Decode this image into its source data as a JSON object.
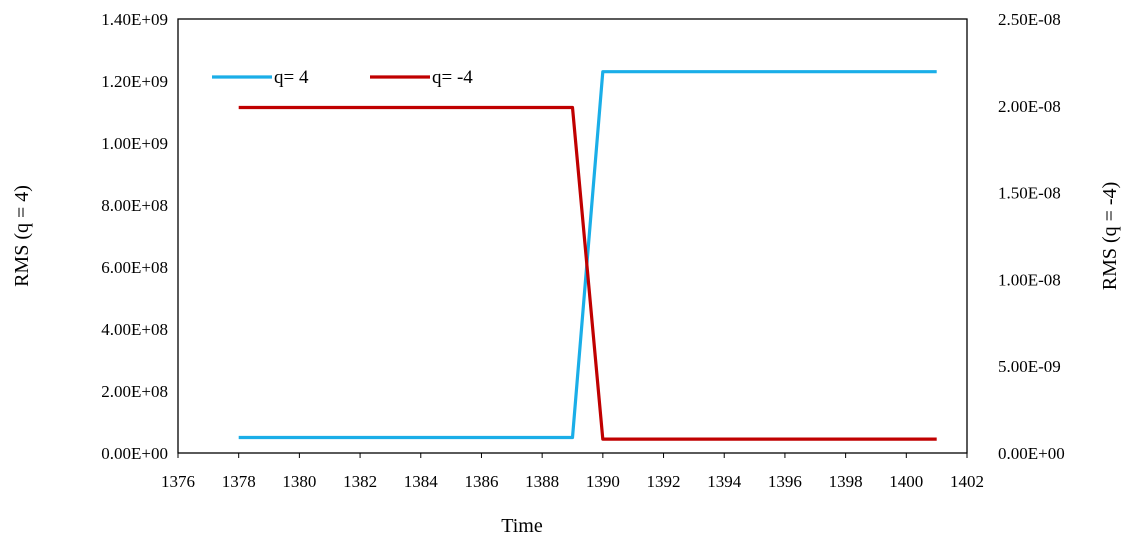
{
  "chart_data": {
    "type": "line",
    "title": "",
    "xlabel": "Time",
    "ylabel_left": "RMS (q = 4)",
    "ylabel_right": "RMS (q = -4)",
    "xlim": [
      1376,
      1402
    ],
    "x_ticks": [
      "1376",
      "1378",
      "1380",
      "1382",
      "1384",
      "1386",
      "1388",
      "1390",
      "1392",
      "1394",
      "1396",
      "1398",
      "1400",
      "1402"
    ],
    "ylim_left": [
      0,
      1400000000
    ],
    "y_left_ticks": [
      "0.00E+00",
      "2.00E+08",
      "4.00E+08",
      "6.00E+08",
      "8.00E+08",
      "1.00E+09",
      "1.20E+09",
      "1.40E+09"
    ],
    "ylim_right": [
      0,
      2.5e-08
    ],
    "y_right_ticks": [
      "0.00E+00",
      "5.00E-09",
      "1.00E-08",
      "1.50E-08",
      "2.00E-08",
      "2.50E-08"
    ],
    "grid": false,
    "legend_position": "top-left",
    "series": [
      {
        "name": "q= 4",
        "axis": "left",
        "color": "#1AAEE8",
        "x": [
          1378,
          1389,
          1390,
          1401
        ],
        "y": [
          50000000,
          50000000,
          1230000000,
          1230000000
        ]
      },
      {
        "name": "q= -4",
        "axis": "right",
        "color": "#C00000",
        "x": [
          1378,
          1389,
          1390,
          1401
        ],
        "y": [
          1.99e-08,
          1.99e-08,
          8e-10,
          8e-10
        ]
      }
    ]
  }
}
